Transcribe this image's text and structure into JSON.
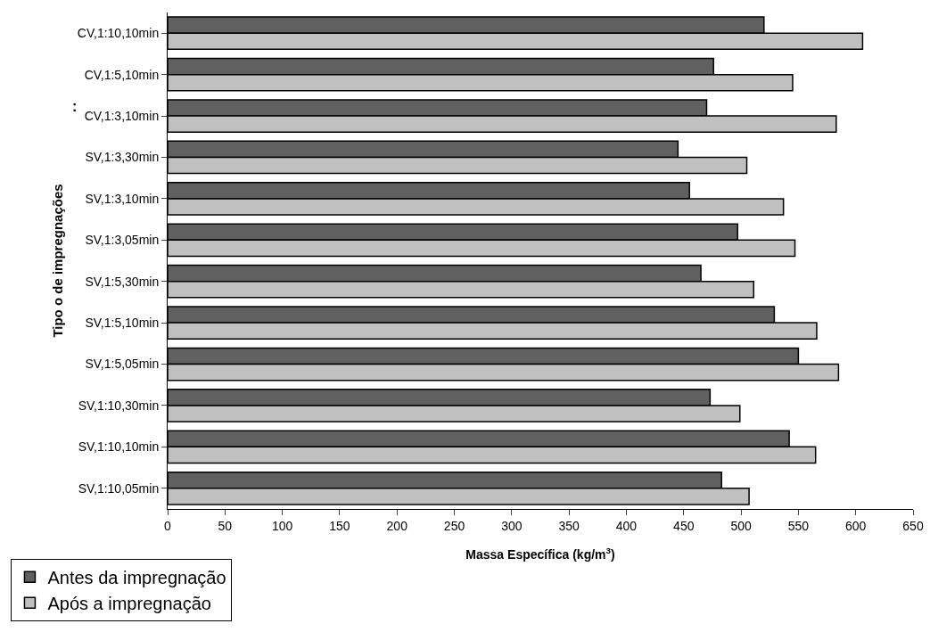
{
  "chart_data": {
    "type": "bar",
    "orientation": "horizontal",
    "xlabel": "Massa Específica (kg/m$^{3}$)",
    "ylabel": "Tipo o de impregnações",
    "annotations": [
      ":"
    ],
    "categories": [
      "CV,1:10,10min",
      "CV,1:5,10min",
      "CV,1:3,10min",
      "SV,1:3,30min",
      "SV,1:3,10min",
      "SV,1:3,05min",
      "SV,1:5,30min",
      "SV,1:5,10min",
      "SV,1:5,05min",
      "SV,1:10,30min",
      "SV,1:10,10min",
      "SV,1:10,05min"
    ],
    "series": [
      {
        "name": "Antes da impregnação",
        "color": "#606060",
        "values": [
          520,
          476,
          470,
          445,
          455,
          497,
          465,
          529,
          550,
          473,
          542,
          483
        ]
      },
      {
        "name": "Após a impregnação",
        "color": "#c0c0c0",
        "values": [
          606,
          545,
          583,
          505,
          537,
          547,
          511,
          566,
          585,
          499,
          565,
          507
        ]
      }
    ],
    "xlim": [
      0,
      650
    ],
    "xticks": [
      0,
      50,
      100,
      150,
      200,
      250,
      300,
      350,
      400,
      450,
      500,
      550,
      600,
      650
    ],
    "grid": false,
    "legend": "bottom left"
  }
}
